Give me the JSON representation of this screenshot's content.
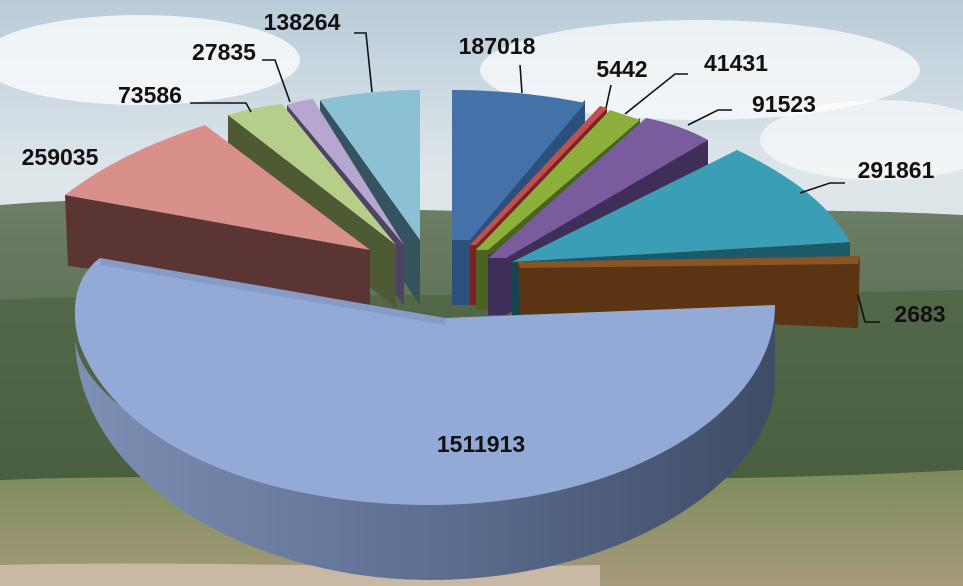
{
  "chart_data": {
    "type": "pie",
    "three_d": true,
    "exploded": true,
    "title": "",
    "legend": "none",
    "slices": [
      {
        "value": 187018,
        "color": "#4472a8"
      },
      {
        "value": 5442,
        "color": "#c0504d"
      },
      {
        "value": 41431,
        "color": "#8db03c"
      },
      {
        "value": 91523,
        "color": "#7a5b9e"
      },
      {
        "value": 291861,
        "color": "#3a9fb6"
      },
      {
        "value": 2683,
        "color": "#6b3b1b"
      },
      {
        "value": 1511913,
        "color": "#94aad6"
      },
      {
        "value": 259035,
        "color": "#d98f8a"
      },
      {
        "value": 73586,
        "color": "#b5cf8b"
      },
      {
        "value": 27835,
        "color": "#b6a6d0"
      },
      {
        "value": 138264,
        "color": "#8cc0d4"
      }
    ]
  }
}
